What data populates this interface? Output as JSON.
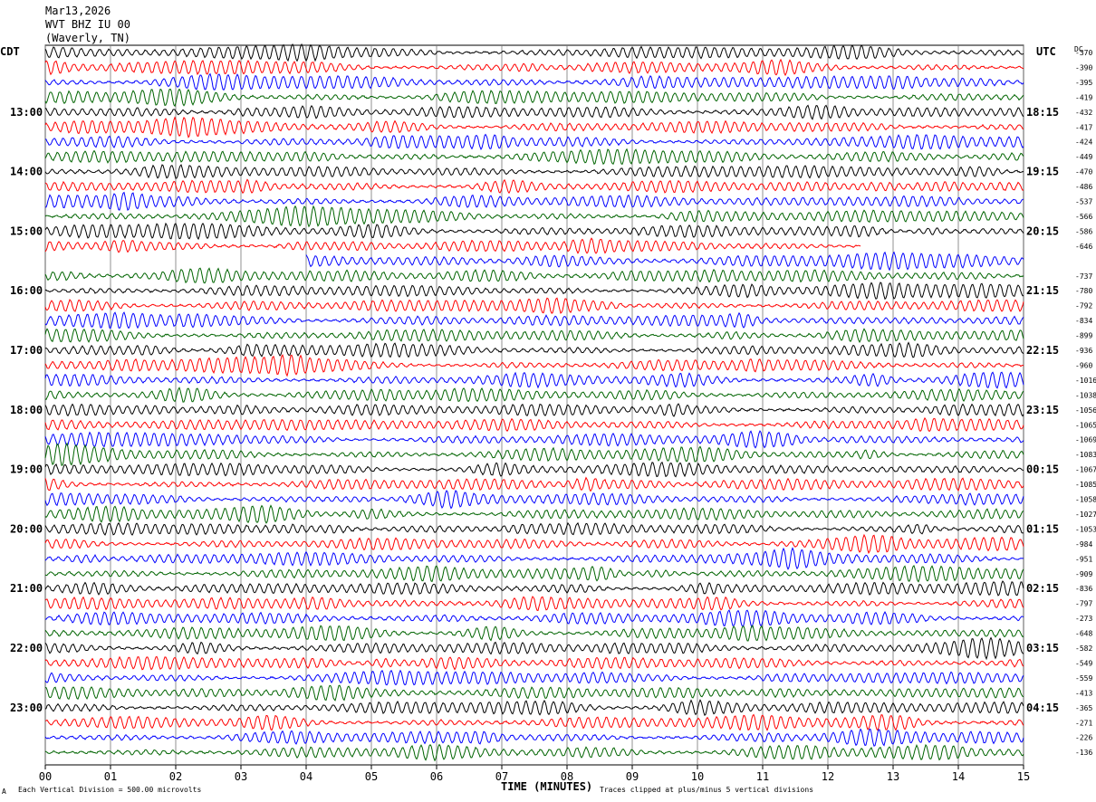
{
  "header": {
    "date": "Mar13,2026",
    "station": "WVT BHZ IU 00",
    "location": "(Waverly, TN)"
  },
  "left_tz": "CDT",
  "right_tz": "UTC",
  "dc_label": "DC",
  "footer": {
    "scale": "Each Vertical Division =  500.00 microvolts",
    "clip": "Traces clipped at plus/minus 5 vertical divisions",
    "corner": "A"
  },
  "colors": {
    "black": "#000000",
    "red": "#ff0000",
    "blue": "#0000ff",
    "green": "#006400"
  },
  "chart_data": {
    "type": "line",
    "xlabel": "TIME (MINUTES)",
    "x_ticks": [
      "00",
      "01",
      "02",
      "03",
      "04",
      "05",
      "06",
      "07",
      "08",
      "09",
      "10",
      "11",
      "12",
      "13",
      "14",
      "15"
    ],
    "xlim": [
      0,
      15
    ],
    "grid": true,
    "traces_per_hour": 4,
    "trace_colors": [
      "black",
      "red",
      "blue",
      "green"
    ],
    "left_time_labels": [
      "13:00",
      "14:00",
      "15:00",
      "16:00",
      "17:00",
      "18:00",
      "19:00",
      "20:00",
      "21:00",
      "22:00",
      "23:00"
    ],
    "right_time_labels": [
      "18:15",
      "19:15",
      "20:15",
      "21:15",
      "22:15",
      "23:15",
      "00:15",
      "01:15",
      "02:15",
      "03:15",
      "04:15"
    ],
    "dc_offsets": [
      "-370",
      "-390",
      "-395",
      "-419",
      "-432",
      "-417",
      "-424",
      "-449",
      "-470",
      "-486",
      "-537",
      "-566",
      "-586",
      "-646",
      "",
      "-737",
      "-780",
      "-792",
      "-834",
      "-899",
      "-936",
      "-960",
      "-1016",
      "-1038",
      "-1056",
      "-1065",
      "-1069",
      "-1083",
      "-1067",
      "-1085",
      "-1058",
      "-1027",
      "-1053",
      "-984",
      "-951",
      "-909",
      "-836",
      "-797",
      "-273",
      "-648",
      "-582",
      "-549",
      "-559",
      "-413",
      "-365",
      "-271",
      "-226",
      "-136"
    ],
    "gaps": [
      {
        "trace": 13,
        "from_minute": 12.5,
        "to_minute": 15
      },
      {
        "trace": 14,
        "from_minute": 0,
        "to_minute": 4
      }
    ]
  }
}
